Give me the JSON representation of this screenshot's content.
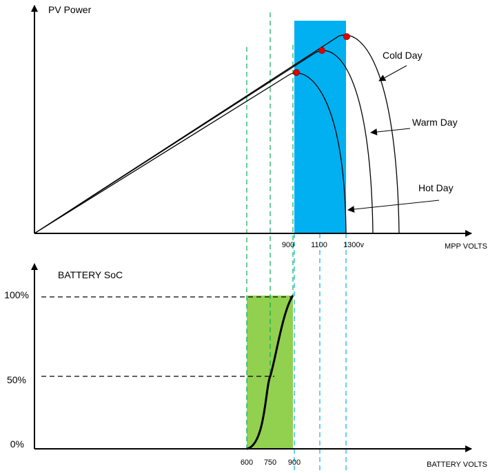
{
  "pv_chart": {
    "y_label": "PV Power",
    "x_label": "MPP VOLTS",
    "curves": [
      "Cold Day",
      "Warm Day",
      "Hot Day"
    ],
    "x_ticks": [
      "900",
      "1100",
      "1300v"
    ]
  },
  "battery_chart": {
    "y_label": "BATTERY SoC",
    "x_label": "BATTERY VOLTS",
    "y_ticks": [
      "100%",
      "50%",
      "0%"
    ],
    "x_ticks": [
      "600",
      "750",
      "900"
    ]
  }
}
